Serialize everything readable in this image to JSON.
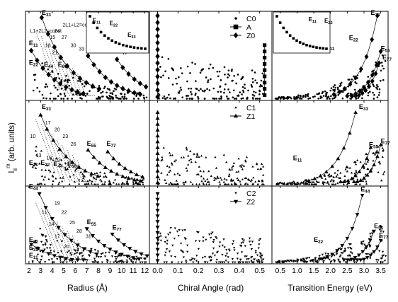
{
  "figure": {
    "ylabel_main": "I",
    "ylabel_sub": "ii",
    "ylabel_sup": "m",
    "ylabel_units": " (arb. units)"
  },
  "chart_data": {
    "type": "scatter",
    "grid": false,
    "columns": [
      {
        "xlabel": "Radius (Å)",
        "xlim": [
          1.7,
          12.4
        ],
        "ticks": [
          {
            "v": 2,
            "label": "2"
          },
          {
            "v": 3,
            "label": "3"
          },
          {
            "v": 4,
            "label": "4"
          },
          {
            "v": 5,
            "label": "5"
          },
          {
            "v": 6,
            "label": "6"
          },
          {
            "v": 7,
            "label": "7"
          },
          {
            "v": 8,
            "label": "8"
          },
          {
            "v": 9,
            "label": "9"
          },
          {
            "v": 10,
            "label": "10"
          },
          {
            "v": 11,
            "label": "11"
          },
          {
            "v": 12,
            "label": "12"
          }
        ]
      },
      {
        "xlabel": "Chiral Angle (rad)",
        "xlim": [
          -0.04,
          0.56
        ],
        "ticks": [
          {
            "v": 0.0,
            "label": "0.0"
          },
          {
            "v": 0.1,
            "label": "0.1"
          },
          {
            "v": 0.2,
            "label": "0.2"
          },
          {
            "v": 0.3,
            "label": "0.3"
          },
          {
            "v": 0.4,
            "label": "0.4"
          },
          {
            "v": 0.5,
            "label": "0.5"
          }
        ]
      },
      {
        "xlabel": "Transition Energy (eV)",
        "xlim": [
          0.25,
          3.72
        ],
        "ticks": [
          {
            "v": 0.5,
            "label": "0.5"
          },
          {
            "v": 1.0,
            "label": "1.0"
          },
          {
            "v": 1.5,
            "label": "1.5"
          },
          {
            "v": 2.0,
            "label": "2.0"
          },
          {
            "v": 2.5,
            "label": "2.5"
          },
          {
            "v": 3.0,
            "label": "3.0"
          },
          {
            "v": 3.5,
            "label": "3.5"
          }
        ]
      }
    ],
    "rows": [
      {
        "legend": [
          {
            "symbol": "dot",
            "name": "C0"
          },
          {
            "symbol": "square",
            "name": "A"
          },
          {
            "symbol": "diamond",
            "name": "Z0"
          }
        ],
        "radius_labels": [
          {
            "text": "E33",
            "x": 3.1,
            "y": 0.96
          },
          {
            "text": "E11",
            "x": 2.0,
            "y": 0.62
          },
          {
            "text": "E55",
            "x": 7.0,
            "y": 0.57
          },
          {
            "text": "E77",
            "x": 9.7,
            "y": 0.53
          },
          {
            "text": "E22",
            "x": 2.0,
            "y": 0.4
          },
          {
            "text": "E44",
            "x": 3.3,
            "y": 0.38
          },
          {
            "text": "E66",
            "x": 4.5,
            "y": 0.38
          }
        ],
        "radius_annotations": [
          {
            "text": "2L1+L2=const",
            "x": 4.9,
            "y": 0.83
          },
          {
            "text": "L1+2L2=const",
            "x": 2.1,
            "y": 0.76
          },
          {
            "text": "24",
            "x": 4.2,
            "y": 0.76
          },
          {
            "text": "15",
            "x": 3.8,
            "y": 0.69
          },
          {
            "text": "27",
            "x": 4.8,
            "y": 0.69
          },
          {
            "text": "18",
            "x": 3.4,
            "y": 0.6
          },
          {
            "text": "30",
            "x": 5.6,
            "y": 0.6
          },
          {
            "text": "21",
            "x": 4.0,
            "y": 0.52
          },
          {
            "text": "33",
            "x": 6.3,
            "y": 0.56
          }
        ],
        "radius_insets": [
          {
            "text": "E11",
            "x": 0.1,
            "y": 0.75
          },
          {
            "text": "E22",
            "x": 0.37,
            "y": 0.68
          },
          {
            "text": "E33",
            "x": 0.66,
            "y": 0.4
          }
        ],
        "energy_labels": [
          {
            "text": "E33",
            "x": 3.2,
            "y": 0.96
          },
          {
            "text": "E55",
            "x": 3.5,
            "y": 0.56
          },
          {
            "text": "E77",
            "x": 3.55,
            "y": 0.46
          },
          {
            "text": "E11",
            "x": 1.85,
            "y": 0.58
          },
          {
            "text": "E22",
            "x": 2.55,
            "y": 0.68
          }
        ],
        "energy_insets": [
          {
            "text": "E11",
            "x": 0.62,
            "y": 0.78
          },
          {
            "text": "E22",
            "x": 0.9,
            "y": 0.74
          }
        ]
      },
      {
        "legend": [
          {
            "symbol": "tri",
            "name": "C1"
          },
          {
            "symbol": "bigtri",
            "name": "Z1"
          }
        ],
        "radius_labels": [
          {
            "text": "E33",
            "x": 3.1,
            "y": 0.9
          },
          {
            "text": "E55",
            "x": 7.0,
            "y": 0.47
          },
          {
            "text": "E77",
            "x": 8.7,
            "y": 0.47
          },
          {
            "text": "E11",
            "x": 2.0,
            "y": 0.25
          },
          {
            "text": "E22",
            "x": 3.0,
            "y": 0.25
          },
          {
            "text": "E44",
            "x": 4.1,
            "y": 0.23
          },
          {
            "text": "E66",
            "x": 5.3,
            "y": 0.23
          }
        ],
        "radius_annotations": [
          {
            "text": "17",
            "x": 3.4,
            "y": 0.72
          },
          {
            "text": "20",
            "x": 4.2,
            "y": 0.64
          },
          {
            "text": "10",
            "x": 2.1,
            "y": 0.56
          },
          {
            "text": "23",
            "x": 4.9,
            "y": 0.56
          },
          {
            "text": "26",
            "x": 5.6,
            "y": 0.47
          },
          {
            "text": "13",
            "x": 2.6,
            "y": 0.34
          },
          {
            "text": "16",
            "x": 3.5,
            "y": 0.31
          },
          {
            "text": "19",
            "x": 4.2,
            "y": 0.28
          }
        ],
        "energy_labels": [
          {
            "text": "E33",
            "x": 2.85,
            "y": 0.9
          },
          {
            "text": "E55",
            "x": 3.15,
            "y": 0.46
          },
          {
            "text": "E77",
            "x": 3.5,
            "y": 0.5
          },
          {
            "text": "E11",
            "x": 0.88,
            "y": 0.3
          }
        ]
      },
      {
        "legend": [
          {
            "symbol": "itri",
            "name": "C2"
          },
          {
            "symbol": "bigitri",
            "name": "Z2"
          }
        ],
        "radius_labels": [
          {
            "text": "E44",
            "x": 2.0,
            "y": 0.97
          },
          {
            "text": "E55",
            "x": 7.0,
            "y": 0.51
          },
          {
            "text": "E77",
            "x": 9.2,
            "y": 0.44
          },
          {
            "text": "E22",
            "x": 2.0,
            "y": 0.28
          },
          {
            "text": "E33",
            "x": 2.0,
            "y": 0.18
          },
          {
            "text": "E11",
            "x": 2.0,
            "y": 0.08
          }
        ],
        "radius_annotations": [
          {
            "text": "19",
            "x": 4.2,
            "y": 0.76
          },
          {
            "text": "11",
            "x": 3.1,
            "y": 0.64
          },
          {
            "text": "22",
            "x": 4.8,
            "y": 0.64
          },
          {
            "text": "14",
            "x": 3.7,
            "y": 0.49
          },
          {
            "text": "25",
            "x": 5.5,
            "y": 0.51
          },
          {
            "text": "28",
            "x": 6.1,
            "y": 0.4
          },
          {
            "text": "17",
            "x": 4.2,
            "y": 0.33
          },
          {
            "text": "31",
            "x": 6.9,
            "y": 0.33
          },
          {
            "text": "20",
            "x": 5.0,
            "y": 0.2
          }
        ],
        "energy_labels": [
          {
            "text": "E44",
            "x": 2.9,
            "y": 0.93
          },
          {
            "text": "E55",
            "x": 3.3,
            "y": 0.46
          },
          {
            "text": "E77",
            "x": 3.45,
            "y": 0.34
          },
          {
            "text": "E22",
            "x": 1.5,
            "y": 0.28
          }
        ]
      }
    ]
  }
}
